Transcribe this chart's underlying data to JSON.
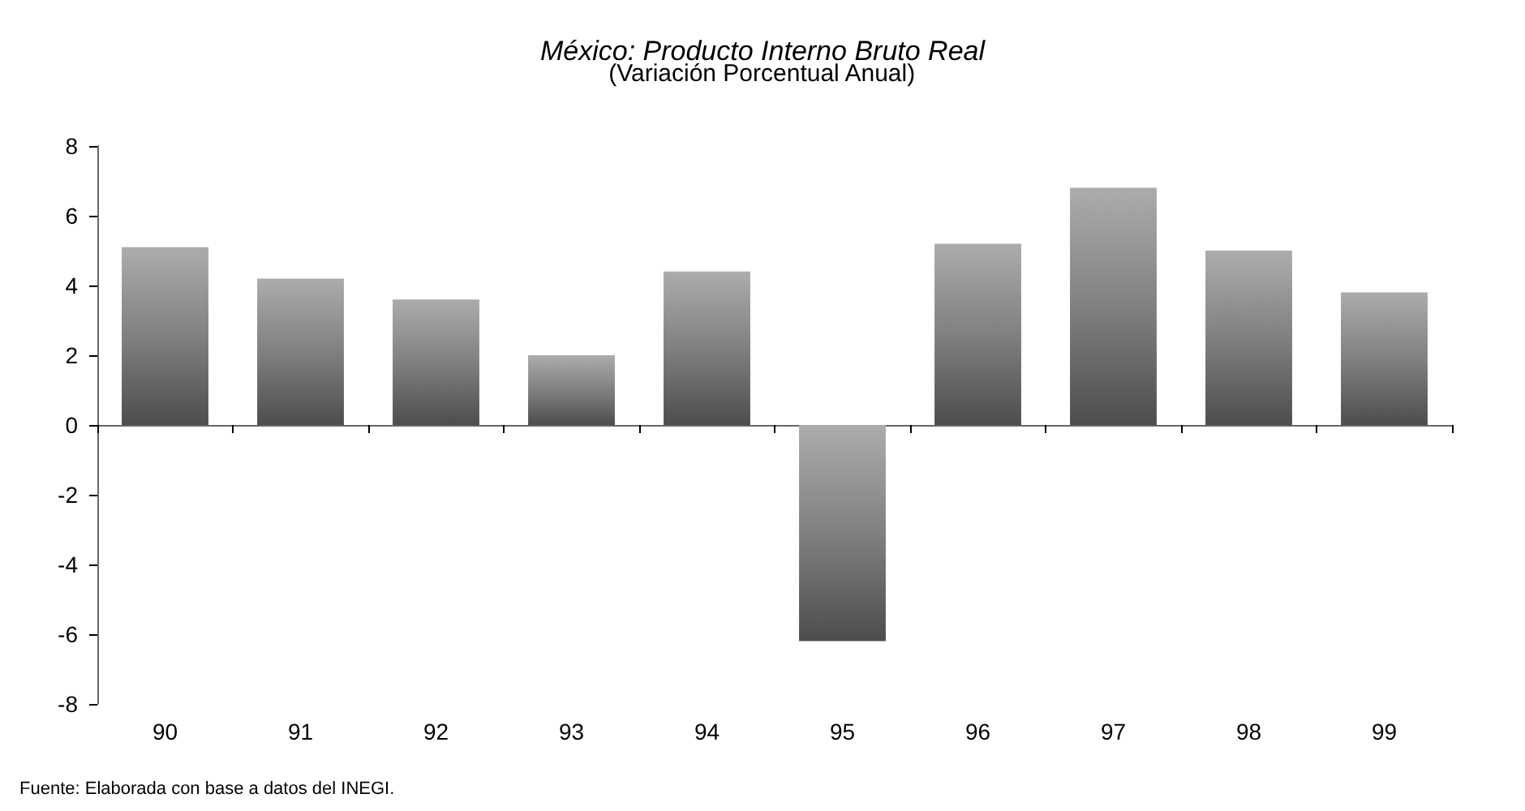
{
  "chart_data": {
    "type": "bar",
    "title": "México: Producto Interno Bruto Real",
    "subtitle": "(Variación Porcentual Anual)",
    "categories": [
      "90",
      "91",
      "92",
      "93",
      "94",
      "95",
      "96",
      "97",
      "98",
      "99"
    ],
    "values": [
      5.1,
      4.2,
      3.6,
      2.0,
      4.4,
      -6.2,
      5.2,
      6.8,
      5.0,
      3.8
    ],
    "color": "#808080",
    "ylim": [
      -8,
      8
    ],
    "yticks": [
      -8,
      -6,
      -4,
      -2,
      0,
      2,
      4,
      6,
      8
    ],
    "annotations": [
      "Fuente: Elaborada con base a datos del INEGI."
    ]
  }
}
